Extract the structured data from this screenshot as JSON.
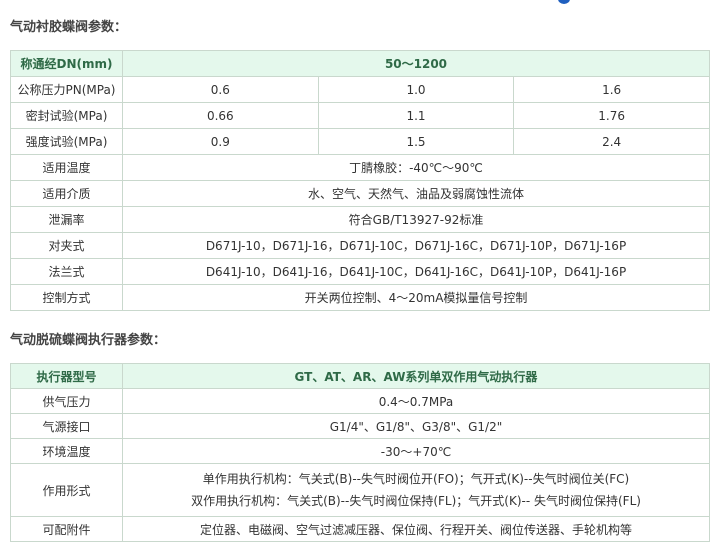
{
  "section1": {
    "title": "气动衬胶蝶阀参数：",
    "header": [
      "称通经DN(mm)",
      "50～1200"
    ],
    "pressure_rows": [
      {
        "label": "公称压力PN(MPa)",
        "values": [
          "0.6",
          "1.0",
          "1.6"
        ]
      },
      {
        "label": "密封试验(MPa)",
        "values": [
          "0.66",
          "1.1",
          "1.76"
        ]
      },
      {
        "label": "强度试验(MPa)",
        "values": [
          "0.9",
          "1.5",
          "2.4"
        ]
      }
    ],
    "rows": [
      {
        "label": "适用温度",
        "value": "丁腈橡胶：-40℃～90℃"
      },
      {
        "label": "适用介质",
        "value": "水、空气、天然气、油品及弱腐蚀性流体"
      },
      {
        "label": "泄漏率",
        "value": "符合GB/T13927-92标准"
      },
      {
        "label": "对夹式",
        "value": "D671J-10，D671J-16，D671J-10C，D671J-16C，D671J-10P，D671J-16P"
      },
      {
        "label": "法兰式",
        "value": "D641J-10，D641J-16，D641J-10C，D641J-16C，D641J-10P，D641J-16P"
      },
      {
        "label": "控制方式",
        "value": "开关两位控制、4～20mA模拟量信号控制"
      }
    ]
  },
  "section2": {
    "title": "气动脱硫蝶阀执行器参数：",
    "header": [
      "执行器型号",
      "GT、AT、AR、AW系列单双作用气动执行器"
    ],
    "rows": [
      {
        "label": "供气压力",
        "value": "0.4～0.7MPa"
      },
      {
        "label": "气源接口",
        "value": "G1/4\"、G1/8\"、G3/8\"、G1/2\""
      },
      {
        "label": "环境温度",
        "value": "-30～+70℃"
      }
    ],
    "action": {
      "label": "作用形式",
      "lines": [
        "单作用执行机构：气关式(B)--失气时阀位开(FO)；气开式(K)--失气时阀位关(FC)",
        "双作用执行机构：气关式(B)--失气时阀位保持(FL)；气开式(K)-- 失气时阀位保持(FL)"
      ]
    },
    "accessories": {
      "label": "可配附件",
      "value": "定位器、电磁阀、空气过滤减压器、保位阀、行程开关、阀位传送器、手轮机构等"
    }
  }
}
